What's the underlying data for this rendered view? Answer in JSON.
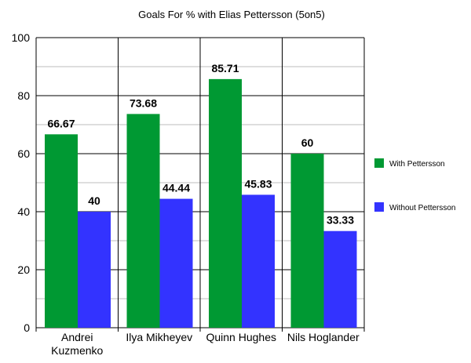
{
  "chart_data": {
    "type": "bar",
    "title": "Goals For % with Elias Pettersson (5on5)",
    "categories": [
      [
        "Andrei",
        "Kuzmenko"
      ],
      [
        "Ilya Mikheyev"
      ],
      [
        "Quinn Hughes"
      ],
      [
        "Nils Hoglander"
      ]
    ],
    "series": [
      {
        "name": "With Pettersson",
        "color": "#009933",
        "values": [
          66.67,
          73.68,
          85.71,
          60
        ]
      },
      {
        "name": "Without Pettersson",
        "color": "#3333ff",
        "values": [
          40,
          44.44,
          45.83,
          33.33
        ]
      }
    ],
    "ylim": [
      0,
      100
    ],
    "yticks": [
      0,
      20,
      40,
      60,
      80,
      100
    ],
    "grid": true,
    "legend_position": "right"
  }
}
